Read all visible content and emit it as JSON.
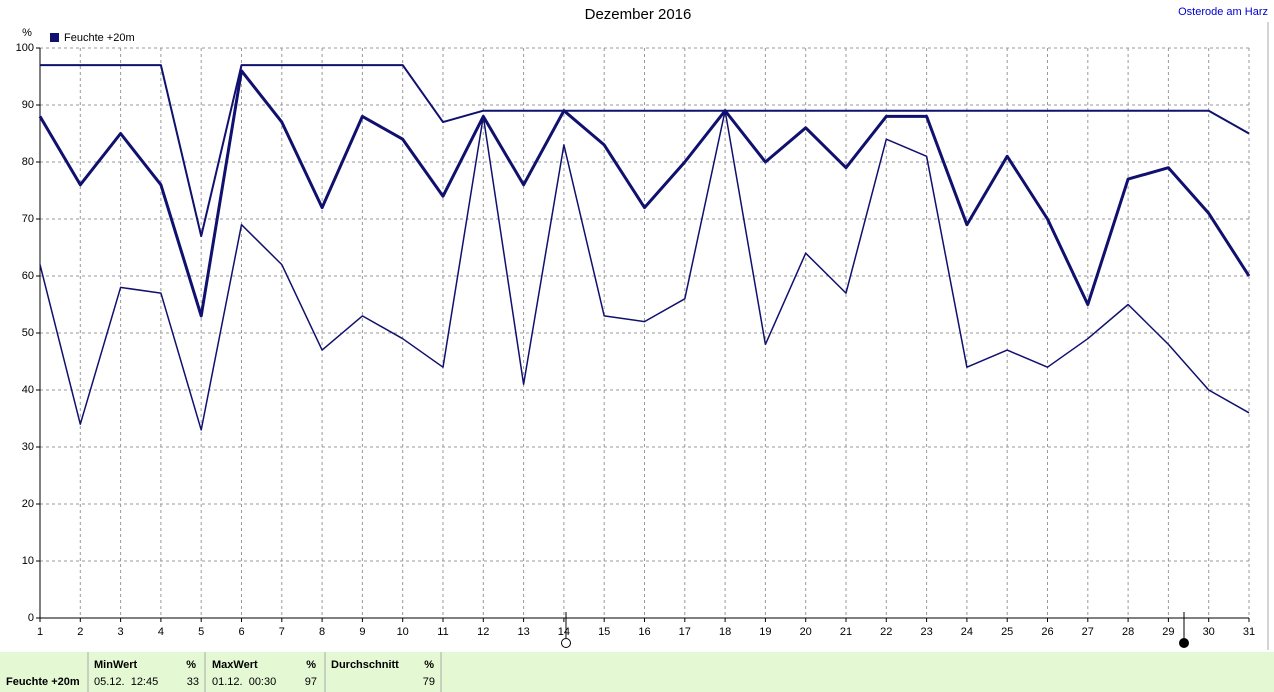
{
  "chart_data": {
    "type": "line",
    "title": "Dezember 2016",
    "location": "Osterode am Harz",
    "y_label": "%",
    "x": [
      1,
      2,
      3,
      4,
      5,
      6,
      7,
      8,
      9,
      10,
      11,
      12,
      13,
      14,
      15,
      16,
      17,
      18,
      19,
      20,
      21,
      22,
      23,
      24,
      25,
      26,
      27,
      28,
      29,
      30,
      31
    ],
    "xlim": [
      1,
      31
    ],
    "xticks": [
      1,
      2,
      3,
      4,
      5,
      6,
      7,
      8,
      9,
      10,
      11,
      12,
      13,
      14,
      15,
      16,
      17,
      18,
      19,
      20,
      21,
      22,
      23,
      24,
      25,
      26,
      27,
      28,
      29,
      30,
      31
    ],
    "ylim": [
      0,
      100
    ],
    "yticks": [
      0,
      10,
      20,
      30,
      40,
      50,
      60,
      70,
      80,
      90,
      100
    ],
    "grid": true,
    "series": [
      {
        "name": "Feuchte +20m",
        "color": "#10106e",
        "max": [
          97,
          97,
          97,
          97,
          67,
          97,
          97,
          97,
          97,
          97,
          87,
          89,
          89,
          89,
          89,
          89,
          89,
          89,
          89,
          89,
          89,
          89,
          89,
          89,
          89,
          89,
          89,
          89,
          89,
          89,
          85
        ],
        "values": [
          88,
          76,
          85,
          76,
          53,
          96,
          87,
          72,
          88,
          84,
          74,
          88,
          76,
          89,
          83,
          72,
          80,
          89,
          80,
          86,
          79,
          88,
          88,
          69,
          81,
          70,
          55,
          77,
          79,
          71,
          60
        ],
        "min": [
          62,
          34,
          58,
          57,
          33,
          69,
          62,
          47,
          53,
          49,
          44,
          88,
          41,
          83,
          53,
          52,
          56,
          89,
          48,
          64,
          57,
          84,
          81,
          44,
          47,
          44,
          49,
          55,
          48,
          40,
          36
        ]
      }
    ],
    "summary": {
      "min_header": "MinWert",
      "min_unit": "%",
      "min_time": "05.12.  12:45",
      "min_value": 33,
      "max_header": "MaxWert",
      "max_unit": "%",
      "max_time": "01.12.  00:30",
      "max_value": 97,
      "avg_header": "Durchschnitt",
      "avg_unit": "%",
      "avg_value": 79
    }
  }
}
